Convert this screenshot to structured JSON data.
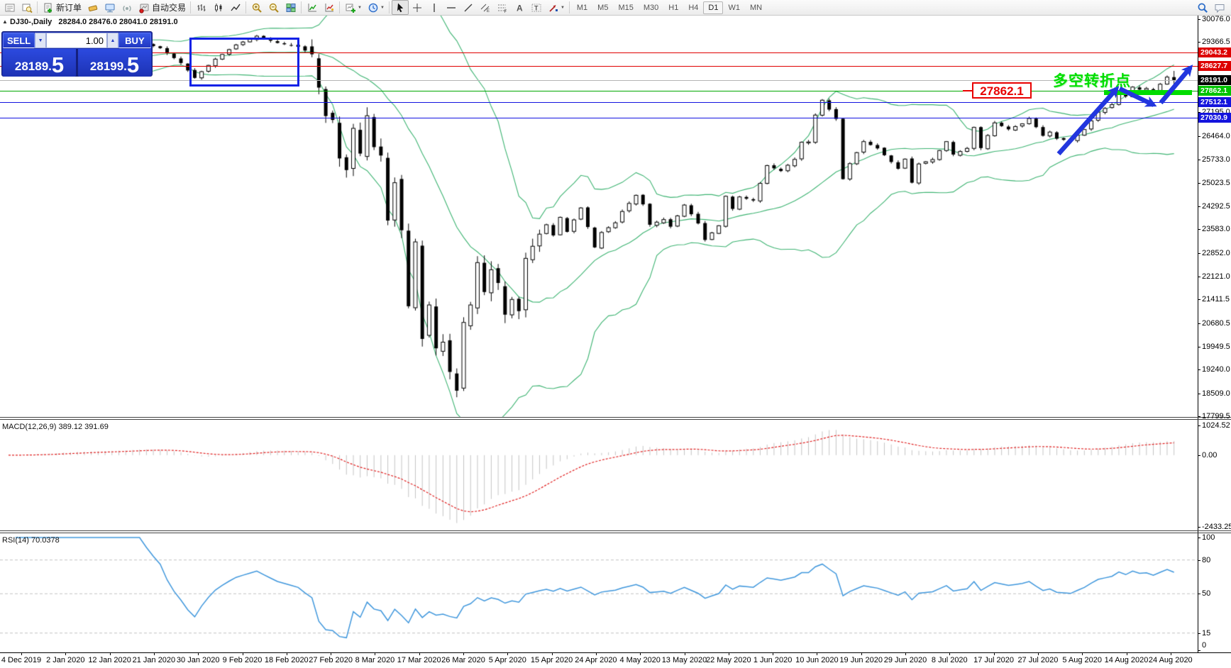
{
  "toolbar": {
    "groups": [
      {
        "items": [
          {
            "name": "charts-list"
          },
          {
            "name": "market-watch"
          }
        ]
      },
      {
        "items": [
          {
            "name": "new-order",
            "label": "新订单"
          },
          {
            "name": "history-center"
          },
          {
            "name": "experts"
          },
          {
            "name": "signals"
          },
          {
            "name": "autotrading",
            "label": "自动交易"
          }
        ]
      },
      {
        "items": [
          {
            "name": "bar-chart"
          },
          {
            "name": "candlestick-chart"
          },
          {
            "name": "line-chart"
          }
        ]
      },
      {
        "items": [
          {
            "name": "zoom-in"
          },
          {
            "name": "zoom-out"
          },
          {
            "name": "tile-windows"
          }
        ]
      },
      {
        "items": [
          {
            "name": "indicators"
          },
          {
            "name": "indicator-favorites"
          }
        ]
      },
      {
        "items": [
          {
            "name": "new-chart",
            "dropdown": true
          },
          {
            "name": "chart-period",
            "dropdown": true
          }
        ]
      },
      {
        "items": [
          {
            "name": "cursor",
            "active": true
          },
          {
            "name": "crosshair"
          },
          {
            "name": "vertical-line"
          },
          {
            "name": "horizontal-line"
          },
          {
            "name": "trendline"
          },
          {
            "name": "equidistant-channel"
          },
          {
            "name": "fibonacci"
          },
          {
            "name": "text"
          },
          {
            "name": "text-label"
          },
          {
            "name": "arrows-tool",
            "dropdown": true
          }
        ]
      }
    ],
    "timeframes": [
      "M1",
      "M5",
      "M15",
      "M30",
      "H1",
      "H4",
      "D1",
      "W1",
      "MN"
    ],
    "active_timeframe": "D1",
    "right_icons": [
      {
        "name": "search"
      },
      {
        "name": "chat"
      }
    ]
  },
  "chart": {
    "title_marker": "▲",
    "symbol_title": "DJ30-,Daily",
    "ohlc_text": "28284.0 28476.0 28041.0 28191.0",
    "one_click": {
      "sell_label": "SELL",
      "buy_label": "BUY",
      "volume": "1.00",
      "sell_price_prefix": "28189.",
      "sell_price_big": "5",
      "buy_price_prefix": "28199.",
      "buy_price_big": "5"
    },
    "level_label": "27862.1",
    "annotation_text": "多空转折点"
  },
  "price_axis": {
    "ticks": [
      "30076.0",
      "29366.5",
      "28635.5",
      "27904.5",
      "27195.0",
      "26464.0",
      "25733.0",
      "25023.5",
      "24292.5",
      "23583.0",
      "22852.0",
      "22121.0",
      "21411.5",
      "20680.5",
      "19949.5",
      "19240.0",
      "18509.0",
      "17799.5"
    ],
    "tick_values": [
      30076.0,
      29366.5,
      28635.5,
      27904.5,
      27195.0,
      26464.0,
      25733.0,
      25023.5,
      24292.5,
      23583.0,
      22852.0,
      22121.0,
      21411.5,
      20680.5,
      19949.5,
      19240.0,
      18509.0,
      17799.5
    ]
  },
  "levels": [
    {
      "text": "29043.2",
      "price": 29043.2,
      "line_color": "#e00000",
      "tag_bg": "#dd0000"
    },
    {
      "text": "28627.7",
      "price": 28627.7,
      "line_color": "#e00000",
      "tag_bg": "#dd0000"
    },
    {
      "text": "28191.0",
      "price": 28191.0,
      "line_color": "#b4b4b4",
      "tag_bg": "#000000"
    },
    {
      "text": "27862.1",
      "price": 27862.1,
      "line_color": "#00a800",
      "tag_bg": "#00c400"
    },
    {
      "text": "27512.1",
      "price": 27512.1,
      "line_color": "#1414e0",
      "tag_bg": "#1414dd"
    },
    {
      "text": "27030.9",
      "price": 27030.9,
      "line_color": "#1414e0",
      "tag_bg": "#1414dd"
    }
  ],
  "time_axis": {
    "labels": [
      "4 Dec 2019",
      "2 Jan 2020",
      "12 Jan 2020",
      "21 Jan 2020",
      "30 Jan 2020",
      "9 Feb 2020",
      "18 Feb 2020",
      "27 Feb 2020",
      "8 Mar 2020",
      "17 Mar 2020",
      "26 Mar 2020",
      "5 Apr 2020",
      "15 Apr 2020",
      "24 Apr 2020",
      "4 May 2020",
      "13 May 2020",
      "22 May 2020",
      "1 Jun 2020",
      "10 Jun 2020",
      "19 Jun 2020",
      "29 Jun 2020",
      "8 Jul 2020",
      "17 Jul 2020",
      "27 Jul 2020",
      "5 Aug 2020",
      "14 Aug 2020",
      "24 Aug 2020"
    ]
  },
  "macd_panel": {
    "label": "MACD(12,26,9) 389.12 391.69",
    "axis_labels": [
      {
        "text": "1024.52",
        "v": 1024.52
      },
      {
        "text": "0.00",
        "v": 0
      },
      {
        "text": "-2433.25",
        "v": -2433.25
      }
    ]
  },
  "rsi_panel": {
    "label": "RSI(14) 70.0378",
    "axis_labels": [
      {
        "text": "100",
        "v": 100
      },
      {
        "text": "80",
        "v": 80
      },
      {
        "text": "50",
        "v": 50
      },
      {
        "text": "15",
        "v": 15
      },
      {
        "text": "0",
        "v": 0
      }
    ],
    "level_lines": [
      80,
      50,
      15
    ]
  },
  "chart_data": {
    "type": "candlestick",
    "symbol": "DJ30",
    "period": "Daily",
    "title": "DJ30-,Daily 28284.0 28476.0 28041.0 28191.0",
    "bid": 28189.5,
    "ask": 28199.5,
    "last_candle": {
      "open": 28284.0,
      "high": 28476.0,
      "low": 28041.0,
      "close": 28191.0
    },
    "ylim": [
      17750,
      30190
    ],
    "y_ticks": [
      30076.0,
      29366.5,
      28635.5,
      27904.5,
      27195.0,
      26464.0,
      25733.0,
      25023.5,
      24292.5,
      23583.0,
      22852.0,
      22121.0,
      21411.5,
      20680.5,
      19949.5,
      19240.0,
      18509.0,
      17799.5
    ],
    "x_labels": [
      "4 Dec 2019",
      "2 Jan 2020",
      "12 Jan 2020",
      "21 Jan 2020",
      "30 Jan 2020",
      "9 Feb 2020",
      "18 Feb 2020",
      "27 Feb 2020",
      "8 Mar 2020",
      "17 Mar 2020",
      "26 Mar 2020",
      "5 Apr 2020",
      "15 Apr 2020",
      "24 Apr 2020",
      "4 May 2020",
      "13 May 2020",
      "22 May 2020",
      "1 Jun 2020",
      "10 Jun 2020",
      "19 Jun 2020",
      "29 Jun 2020",
      "8 Jul 2020",
      "17 Jul 2020",
      "27 Jul 2020",
      "5 Aug 2020",
      "14 Aug 2020",
      "24 Aug 2020"
    ],
    "candle_count": 170,
    "close_anchors": [
      [
        0,
        28450
      ],
      [
        4,
        28620
      ],
      [
        8,
        28880
      ],
      [
        12,
        28940
      ],
      [
        16,
        29100
      ],
      [
        19,
        29370
      ],
      [
        22,
        29180
      ],
      [
        25,
        28720
      ],
      [
        27,
        28260
      ],
      [
        30,
        28840
      ],
      [
        33,
        29280
      ],
      [
        36,
        29550
      ],
      [
        39,
        29340
      ],
      [
        42,
        29220
      ],
      [
        44,
        28990
      ],
      [
        45,
        27960
      ],
      [
        46,
        27080
      ],
      [
        47,
        26960
      ],
      [
        48,
        25770
      ],
      [
        49,
        25410
      ],
      [
        50,
        26700
      ],
      [
        51,
        25920
      ],
      [
        52,
        27090
      ],
      [
        53,
        26120
      ],
      [
        54,
        25860
      ],
      [
        55,
        23850
      ],
      [
        56,
        25020
      ],
      [
        57,
        23550
      ],
      [
        58,
        21200
      ],
      [
        59,
        23190
      ],
      [
        60,
        20190
      ],
      [
        61,
        21240
      ],
      [
        62,
        19900
      ],
      [
        63,
        20090
      ],
      [
        64,
        19170
      ],
      [
        65,
        18590
      ],
      [
        66,
        20700
      ],
      [
        67,
        21240
      ],
      [
        68,
        22550
      ],
      [
        69,
        21640
      ],
      [
        70,
        22330
      ],
      [
        71,
        21920
      ],
      [
        72,
        20940
      ],
      [
        73,
        21410
      ],
      [
        74,
        21050
      ],
      [
        75,
        22680
      ],
      [
        77,
        23430
      ],
      [
        78,
        23720
      ],
      [
        79,
        23390
      ],
      [
        80,
        23950
      ],
      [
        81,
        23500
      ],
      [
        83,
        24240
      ],
      [
        84,
        23650
      ],
      [
        85,
        23020
      ],
      [
        86,
        23480
      ],
      [
        88,
        23780
      ],
      [
        89,
        24130
      ],
      [
        91,
        24630
      ],
      [
        92,
        24350
      ],
      [
        93,
        23720
      ],
      [
        95,
        23880
      ],
      [
        96,
        23660
      ],
      [
        98,
        24330
      ],
      [
        100,
        23760
      ],
      [
        101,
        23250
      ],
      [
        103,
        23690
      ],
      [
        104,
        24600
      ],
      [
        105,
        24210
      ],
      [
        106,
        24580
      ],
      [
        108,
        24470
      ],
      [
        109,
        25000
      ],
      [
        110,
        25550
      ],
      [
        112,
        25380
      ],
      [
        114,
        25740
      ],
      [
        115,
        26270
      ],
      [
        116,
        26280
      ],
      [
        117,
        27110
      ],
      [
        118,
        27570
      ],
      [
        120,
        26990
      ],
      [
        121,
        25130
      ],
      [
        122,
        25610
      ],
      [
        124,
        26290
      ],
      [
        126,
        26080
      ],
      [
        127,
        25870
      ],
      [
        129,
        25450
      ],
      [
        130,
        25750
      ],
      [
        131,
        25020
      ],
      [
        132,
        25600
      ],
      [
        134,
        25735
      ],
      [
        136,
        26290
      ],
      [
        137,
        25890
      ],
      [
        139,
        26080
      ],
      [
        140,
        26730
      ],
      [
        141,
        26090
      ],
      [
        143,
        26870
      ],
      [
        145,
        26670
      ],
      [
        147,
        26840
      ],
      [
        148,
        27005
      ],
      [
        150,
        26470
      ],
      [
        151,
        26585
      ],
      [
        152,
        26380
      ],
      [
        154,
        26313
      ],
      [
        156,
        26664
      ],
      [
        158,
        27202
      ],
      [
        160,
        27433
      ],
      [
        161,
        27791
      ],
      [
        162,
        27686
      ],
      [
        163,
        27977
      ],
      [
        164,
        27897
      ],
      [
        165,
        27931
      ],
      [
        166,
        27845
      ],
      [
        168,
        28284
      ],
      [
        169,
        28191
      ]
    ],
    "overlays": {
      "bollinger": {
        "period": 20,
        "deviation": 2,
        "color": "#3cb371"
      }
    },
    "indicators": {
      "macd": {
        "params": [
          12,
          26,
          9
        ],
        "current_values": [
          389.12,
          391.69
        ],
        "axis_max": 1024.52,
        "axis_min": -2433.25
      },
      "rsi": {
        "period": 14,
        "current_value": 70.0378,
        "levels": [
          80,
          50,
          15
        ],
        "range": [
          0,
          100
        ]
      }
    },
    "annotations": {
      "resistance_lines": [
        29043.2,
        28627.7
      ],
      "pivot_line_green": 27862.1,
      "support_lines_blue": [
        27512.1,
        27030.9
      ],
      "current_price_line": 28191.0,
      "callout_label": "27862.1",
      "text_label": "多空转折点",
      "consolidation_box_price_range": [
        28210,
        29610
      ]
    }
  }
}
